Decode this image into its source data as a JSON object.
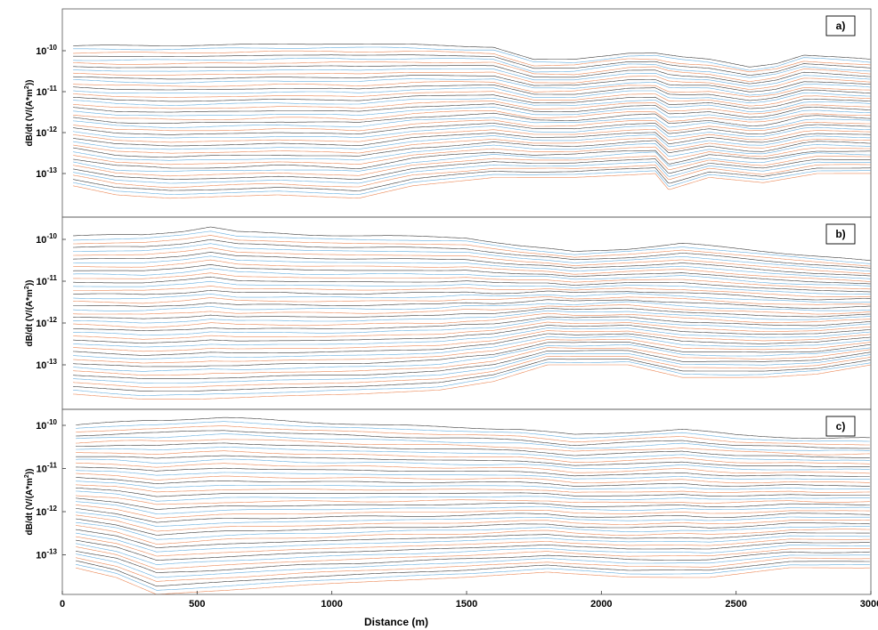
{
  "chart_data": {
    "type": "line",
    "x_axis": {
      "label": "Distance (m)",
      "range": [
        0,
        3000
      ],
      "ticks": [
        0,
        500,
        1000,
        1500,
        2000,
        2500,
        3000
      ],
      "tick_labels": [
        "0",
        "500",
        "1000",
        "1500",
        "2000",
        "2500",
        "3000"
      ]
    },
    "y_scale": "log",
    "colors": {
      "trace_1": "#1a1a1a",
      "trace_2": "#4a9fd8",
      "trace_3": "#e8733a"
    },
    "panels": [
      {
        "tag": "a)",
        "ylabel_main": "dB/dt (V/(A*m",
        "ylabel_sup": "2",
        "ylabel_tail": "))",
        "yticks": [
          {
            "value": 1e-10,
            "base": "10",
            "exp": "-10"
          },
          {
            "value": 1e-11,
            "base": "10",
            "exp": "-11"
          },
          {
            "value": 1e-12,
            "base": "10",
            "exp": "-12"
          },
          {
            "value": 1e-13,
            "base": "10",
            "exp": "-13"
          }
        ],
        "trace_count": 42,
        "x_start": 40,
        "x_end": 3000,
        "top_profile": [
          [
            40,
            1.3e-10
          ],
          [
            300,
            1.35e-10
          ],
          [
            700,
            1.4e-10
          ],
          [
            1000,
            1.5e-10
          ],
          [
            1300,
            1.4e-10
          ],
          [
            1600,
            1.25e-10
          ],
          [
            1750,
            6e-11
          ],
          [
            1900,
            6e-11
          ],
          [
            2100,
            9e-11
          ],
          [
            2200,
            9e-11
          ],
          [
            2300,
            7e-11
          ],
          [
            2400,
            6e-11
          ],
          [
            2550,
            4e-11
          ],
          [
            2650,
            5e-11
          ],
          [
            2750,
            8e-11
          ],
          [
            3000,
            6e-11
          ]
        ],
        "bottom_profile": [
          [
            40,
            5e-14
          ],
          [
            200,
            3e-14
          ],
          [
            400,
            2.5e-14
          ],
          [
            800,
            3e-14
          ],
          [
            1100,
            2.5e-14
          ],
          [
            1300,
            5e-14
          ],
          [
            1600,
            8e-14
          ],
          [
            1900,
            8e-14
          ],
          [
            2200,
            1e-13
          ],
          [
            2250,
            4e-14
          ],
          [
            2400,
            8e-14
          ],
          [
            2600,
            6e-14
          ],
          [
            2800,
            1e-13
          ],
          [
            3000,
            1e-13
          ]
        ]
      },
      {
        "tag": "b)",
        "ylabel_main": "dB/dt (V/(A*m",
        "ylabel_sup": "2",
        "ylabel_tail": "))",
        "yticks": [
          {
            "value": 1e-10,
            "base": "10",
            "exp": "-10"
          },
          {
            "value": 1e-11,
            "base": "10",
            "exp": "-11"
          },
          {
            "value": 1e-12,
            "base": "10",
            "exp": "-12"
          },
          {
            "value": 1e-13,
            "base": "10",
            "exp": "-13"
          }
        ],
        "trace_count": 42,
        "x_start": 40,
        "x_end": 3000,
        "top_profile": [
          [
            40,
            1.2e-10
          ],
          [
            300,
            1.3e-10
          ],
          [
            450,
            1.6e-10
          ],
          [
            550,
            2e-10
          ],
          [
            650,
            1.5e-10
          ],
          [
            900,
            1.3e-10
          ],
          [
            1200,
            1.2e-10
          ],
          [
            1500,
            1.1e-10
          ],
          [
            1700,
            7e-11
          ],
          [
            1900,
            5e-11
          ],
          [
            2100,
            6e-11
          ],
          [
            2300,
            8e-11
          ],
          [
            2500,
            6e-11
          ],
          [
            2800,
            4e-11
          ],
          [
            3000,
            3e-11
          ]
        ],
        "bottom_profile": [
          [
            40,
            2e-14
          ],
          [
            300,
            1.5e-14
          ],
          [
            500,
            1.5e-14
          ],
          [
            800,
            1.8e-14
          ],
          [
            1100,
            2e-14
          ],
          [
            1400,
            2.5e-14
          ],
          [
            1600,
            4e-14
          ],
          [
            1800,
            1e-13
          ],
          [
            2100,
            1e-13
          ],
          [
            2300,
            5e-14
          ],
          [
            2600,
            5e-14
          ],
          [
            2800,
            6e-14
          ],
          [
            3000,
            1e-13
          ]
        ]
      },
      {
        "tag": "c)",
        "ylabel_main": "dB/dt (V/(A*m",
        "ylabel_sup": "2",
        "ylabel_tail": "))",
        "yticks": [
          {
            "value": 1e-10,
            "base": "10",
            "exp": "-10"
          },
          {
            "value": 1e-11,
            "base": "10",
            "exp": "-11"
          },
          {
            "value": 1e-12,
            "base": "10",
            "exp": "-12"
          },
          {
            "value": 1e-13,
            "base": "10",
            "exp": "-13"
          }
        ],
        "trace_count": 42,
        "x_start": 50,
        "x_end": 3000,
        "top_profile": [
          [
            50,
            1e-10
          ],
          [
            300,
            1.3e-10
          ],
          [
            600,
            1.5e-10
          ],
          [
            900,
            1.2e-10
          ],
          [
            1200,
            1e-10
          ],
          [
            1500,
            9e-11
          ],
          [
            1700,
            8e-11
          ],
          [
            1900,
            6e-11
          ],
          [
            2100,
            7e-11
          ],
          [
            2300,
            8e-11
          ],
          [
            2500,
            6e-11
          ],
          [
            2800,
            5e-11
          ],
          [
            3000,
            5e-11
          ]
        ],
        "bottom_profile": [
          [
            50,
            5e-14
          ],
          [
            200,
            3e-14
          ],
          [
            350,
            1.2e-14
          ],
          [
            600,
            1.5e-14
          ],
          [
            900,
            2e-14
          ],
          [
            1200,
            2.5e-14
          ],
          [
            1500,
            3e-14
          ],
          [
            1800,
            4e-14
          ],
          [
            2100,
            3e-14
          ],
          [
            2250,
            3e-14
          ],
          [
            2400,
            3e-14
          ],
          [
            2700,
            5e-14
          ],
          [
            3000,
            5e-14
          ]
        ]
      }
    ]
  }
}
